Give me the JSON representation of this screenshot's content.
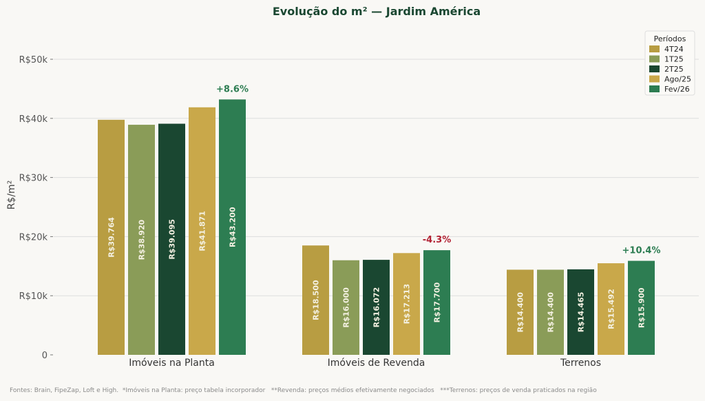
{
  "chart_data": {
    "type": "bar",
    "title": "Evolução do m² — Jardim América",
    "xlabel": "",
    "ylabel": "R$/m²",
    "ylim": [
      0,
      50000
    ],
    "yticks": [
      0,
      10000,
      20000,
      30000,
      40000,
      50000
    ],
    "ytick_labels": [
      "0",
      "R$10k",
      "R$20k",
      "R$30k",
      "R$40k",
      "R$50k"
    ],
    "grid": true,
    "categories": [
      "Imóveis na Planta",
      "Imóveis de Revenda",
      "Terrenos"
    ],
    "series": [
      {
        "name": "4T24",
        "color": "#B89D42",
        "values": [
          39764,
          18500,
          14400
        ],
        "labels": [
          "R$39.764",
          "R$18.500",
          "R$14.400"
        ]
      },
      {
        "name": "1T25",
        "color": "#8A9C58",
        "values": [
          38920,
          16000,
          14400
        ],
        "labels": [
          "R$38.920",
          "R$16.000",
          "R$14.400"
        ]
      },
      {
        "name": "2T25",
        "color": "#1A4731",
        "values": [
          39095,
          16072,
          14465
        ],
        "labels": [
          "R$39.095",
          "R$16.072",
          "R$14.465"
        ]
      },
      {
        "name": "Ago/25",
        "color": "#C9A84A",
        "values": [
          41871,
          17213,
          15492
        ],
        "labels": [
          "R$41.871",
          "R$17.213",
          "R$15.492"
        ]
      },
      {
        "name": "Fev/26",
        "color": "#2D7D52",
        "values": [
          43200,
          17700,
          15900
        ],
        "labels": [
          "R$43.200",
          "R$17.700",
          "R$15.900"
        ]
      }
    ],
    "annotations": [
      {
        "text": "+8.6%",
        "category": 0,
        "color": "#2D7D52"
      },
      {
        "text": "-4.3%",
        "category": 1,
        "color": "#B22234"
      },
      {
        "text": "+10.4%",
        "category": 2,
        "color": "#2D7D52"
      }
    ],
    "legend": {
      "title": "Períodos",
      "placement": "top-right"
    }
  },
  "footnote": "Fontes: Brain, FipeZap, Loft e High.  *Imóveis na Planta: preço tabela incorporador   **Revenda: preços médios efetivamente negociados   ***Terrenos: preços de venda praticados na região"
}
